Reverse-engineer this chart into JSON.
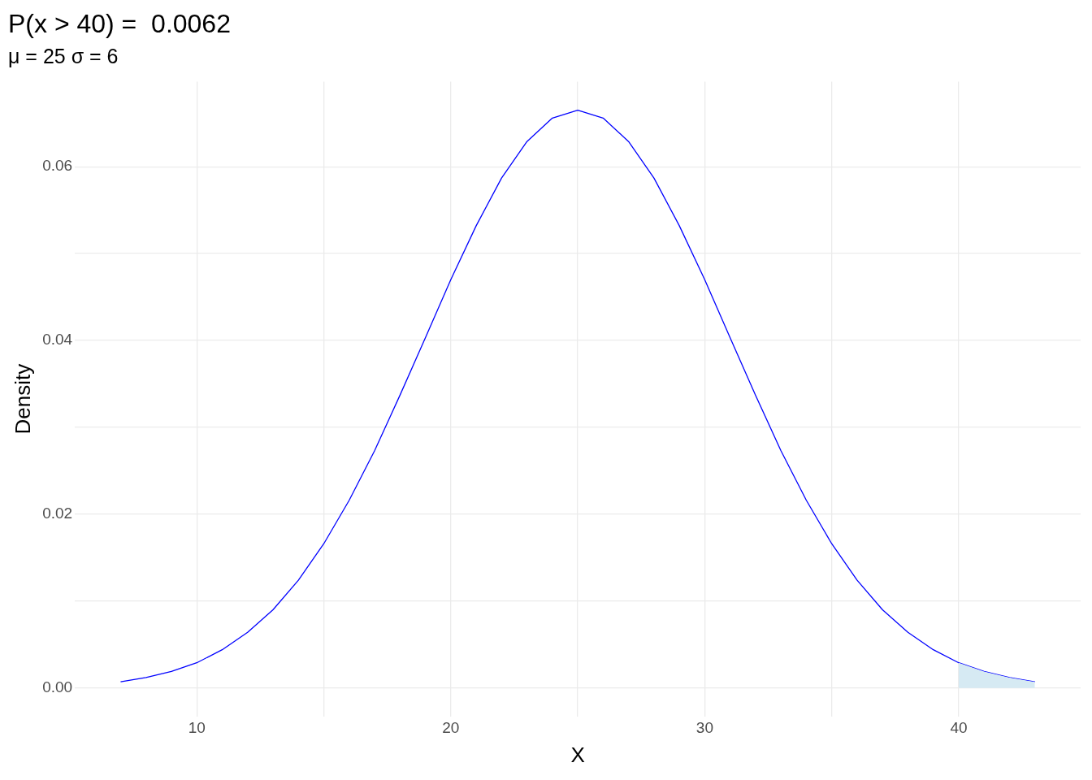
{
  "chart_data": {
    "type": "line",
    "title": "P(x > 40) =  0.0062",
    "subtitle": "μ = 25 σ = 6",
    "xlabel": "X",
    "ylabel": "Density",
    "x": [
      7,
      8,
      9,
      10,
      11,
      12,
      13,
      14,
      15,
      16,
      17,
      18,
      19,
      20,
      21,
      22,
      23,
      24,
      25,
      26,
      27,
      28,
      29,
      30,
      31,
      32,
      33,
      34,
      35,
      36,
      37,
      38,
      39,
      40,
      41,
      42,
      43
    ],
    "series": [
      {
        "type": "area",
        "color": "#d6eaf3",
        "x": [
          40,
          41,
          42,
          43
        ],
        "values": [
          0.0029,
          0.0019,
          0.0012,
          0.0007
        ]
      },
      {
        "type": "line",
        "color": "#0000ff",
        "values": [
          0.0007,
          0.0012,
          0.0019,
          0.0029,
          0.0044,
          0.0064,
          0.009,
          0.0124,
          0.0166,
          0.0216,
          0.0273,
          0.0337,
          0.0403,
          0.047,
          0.0532,
          0.0587,
          0.0629,
          0.0656,
          0.0665,
          0.0656,
          0.0629,
          0.0587,
          0.0532,
          0.047,
          0.0403,
          0.0337,
          0.0273,
          0.0216,
          0.0166,
          0.0124,
          0.009,
          0.0064,
          0.0044,
          0.0029,
          0.0019,
          0.0012,
          0.0007
        ]
      }
    ],
    "xlim": [
      5.2,
      44.8
    ],
    "xticks": [
      10,
      {
        "value": 15,
        "label": null
      },
      20,
      {
        "value": 25,
        "label": null
      },
      30,
      {
        "value": 35,
        "label": null
      },
      40
    ],
    "ylim": [
      -0.0033,
      0.0698
    ],
    "yticks": [
      {
        "value": 0,
        "label": "0.00"
      },
      {
        "value": 0.01,
        "label": null
      },
      {
        "value": 0.02,
        "label": "0.02"
      },
      {
        "value": 0.03,
        "label": null
      },
      {
        "value": 0.04,
        "label": "0.04"
      },
      {
        "value": 0.05,
        "label": null
      },
      {
        "value": 0.06,
        "label": "0.06"
      }
    ],
    "grid": true,
    "legend": false,
    "marker": "none",
    "line_style": "solid"
  }
}
